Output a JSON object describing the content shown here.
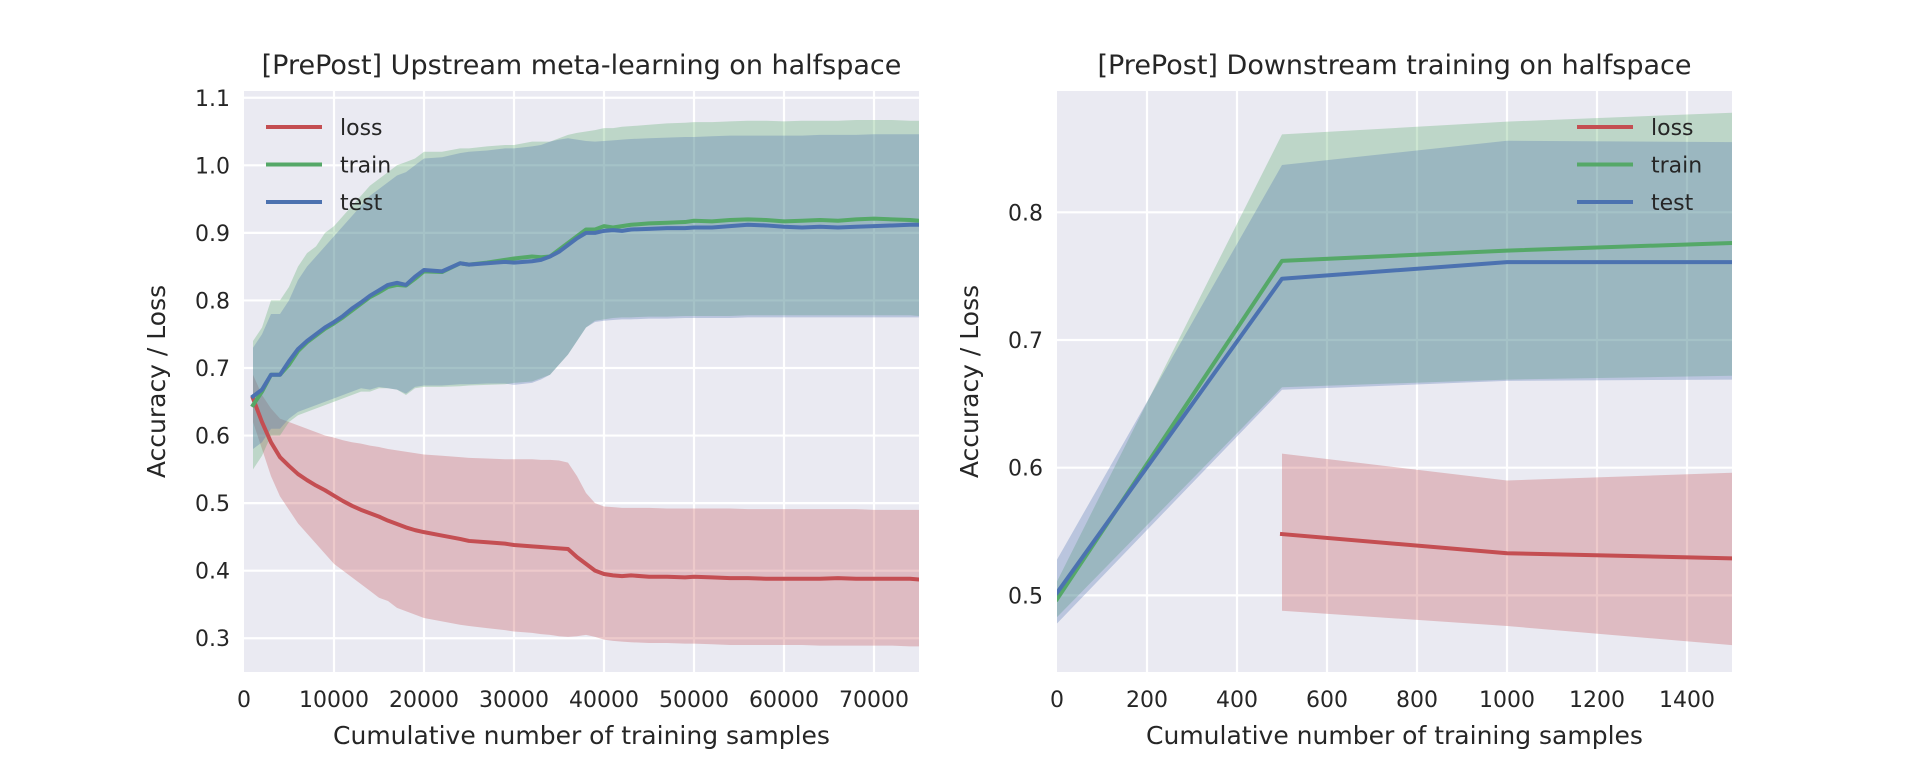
{
  "chart_data": [
    {
      "type": "line",
      "title": "[PrePost] Upstream meta-learning on halfspace",
      "xlabel": "Cumulative number of training samples",
      "ylabel": "Accuracy / Loss",
      "xlim": [
        0,
        75000
      ],
      "ylim": [
        0.25,
        1.11
      ],
      "xticks": [
        0,
        10000,
        20000,
        30000,
        40000,
        50000,
        60000,
        70000
      ],
      "yticks": [
        0.3,
        0.4,
        0.5,
        0.6,
        0.7,
        0.8,
        0.9,
        1.0,
        1.1
      ],
      "grid": true,
      "legend_position": "top-left",
      "x": [
        1000,
        2000,
        3000,
        4000,
        5000,
        6000,
        7000,
        8000,
        9000,
        10000,
        11000,
        12000,
        13000,
        14000,
        15000,
        16000,
        17000,
        18000,
        19000,
        20000,
        22000,
        24000,
        25000,
        27000,
        29000,
        30000,
        32000,
        33000,
        34000,
        35000,
        36000,
        37000,
        38000,
        39000,
        40000,
        41000,
        42000,
        43000,
        45000,
        47000,
        49000,
        50000,
        52000,
        54000,
        56000,
        58000,
        60000,
        62000,
        64000,
        66000,
        68000,
        70000,
        72000,
        74000,
        75000
      ],
      "series": [
        {
          "name": "loss",
          "color": "#c44e52",
          "values": [
            0.655,
            0.62,
            0.59,
            0.568,
            0.555,
            0.543,
            0.534,
            0.526,
            0.519,
            0.511,
            0.503,
            0.496,
            0.49,
            0.485,
            0.48,
            0.474,
            0.469,
            0.464,
            0.46,
            0.457,
            0.452,
            0.447,
            0.444,
            0.442,
            0.44,
            0.438,
            0.436,
            0.435,
            0.434,
            0.433,
            0.432,
            0.42,
            0.41,
            0.4,
            0.395,
            0.393,
            0.392,
            0.393,
            0.391,
            0.391,
            0.39,
            0.391,
            0.39,
            0.389,
            0.389,
            0.388,
            0.388,
            0.388,
            0.388,
            0.389,
            0.388,
            0.388,
            0.388,
            0.388,
            0.387
          ],
          "band_low": [
            0.62,
            0.58,
            0.54,
            0.51,
            0.49,
            0.47,
            0.455,
            0.44,
            0.425,
            0.41,
            0.4,
            0.39,
            0.38,
            0.37,
            0.36,
            0.355,
            0.345,
            0.34,
            0.335,
            0.33,
            0.325,
            0.32,
            0.318,
            0.315,
            0.312,
            0.31,
            0.308,
            0.306,
            0.305,
            0.303,
            0.302,
            0.303,
            0.305,
            0.302,
            0.298,
            0.296,
            0.295,
            0.294,
            0.293,
            0.293,
            0.292,
            0.292,
            0.291,
            0.29,
            0.29,
            0.29,
            0.29,
            0.29,
            0.289,
            0.289,
            0.289,
            0.289,
            0.289,
            0.288,
            0.288
          ],
          "band_high": [
            0.69,
            0.66,
            0.64,
            0.625,
            0.62,
            0.615,
            0.61,
            0.605,
            0.6,
            0.597,
            0.593,
            0.59,
            0.588,
            0.585,
            0.583,
            0.58,
            0.578,
            0.576,
            0.574,
            0.572,
            0.57,
            0.568,
            0.567,
            0.566,
            0.565,
            0.565,
            0.565,
            0.564,
            0.564,
            0.563,
            0.56,
            0.54,
            0.515,
            0.5,
            0.495,
            0.494,
            0.493,
            0.493,
            0.493,
            0.492,
            0.492,
            0.492,
            0.492,
            0.492,
            0.491,
            0.491,
            0.491,
            0.491,
            0.491,
            0.491,
            0.491,
            0.49,
            0.49,
            0.49,
            0.49
          ]
        },
        {
          "name": "train",
          "color": "#55a868",
          "values": [
            0.645,
            0.665,
            0.69,
            0.69,
            0.705,
            0.725,
            0.738,
            0.748,
            0.758,
            0.766,
            0.775,
            0.785,
            0.795,
            0.805,
            0.812,
            0.82,
            0.823,
            0.822,
            0.832,
            0.843,
            0.842,
            0.855,
            0.853,
            0.856,
            0.86,
            0.862,
            0.865,
            0.864,
            0.865,
            0.875,
            0.885,
            0.895,
            0.905,
            0.905,
            0.91,
            0.908,
            0.91,
            0.912,
            0.914,
            0.915,
            0.916,
            0.918,
            0.917,
            0.919,
            0.92,
            0.919,
            0.917,
            0.918,
            0.919,
            0.918,
            0.92,
            0.921,
            0.92,
            0.919,
            0.918
          ],
          "band_low": [
            0.55,
            0.57,
            0.6,
            0.6,
            0.62,
            0.63,
            0.635,
            0.64,
            0.645,
            0.65,
            0.655,
            0.66,
            0.665,
            0.665,
            0.67,
            0.67,
            0.668,
            0.66,
            0.67,
            0.672,
            0.672,
            0.673,
            0.674,
            0.675,
            0.676,
            0.678,
            0.68,
            0.685,
            0.69,
            0.705,
            0.72,
            0.74,
            0.76,
            0.77,
            0.772,
            0.774,
            0.775,
            0.775,
            0.776,
            0.776,
            0.777,
            0.777,
            0.777,
            0.777,
            0.778,
            0.778,
            0.778,
            0.778,
            0.778,
            0.778,
            0.778,
            0.778,
            0.778,
            0.778,
            0.777
          ],
          "band_high": [
            0.74,
            0.76,
            0.8,
            0.8,
            0.82,
            0.85,
            0.87,
            0.88,
            0.9,
            0.91,
            0.925,
            0.94,
            0.955,
            0.97,
            0.98,
            0.99,
            1.0,
            1.005,
            1.01,
            1.02,
            1.02,
            1.025,
            1.025,
            1.028,
            1.03,
            1.03,
            1.035,
            1.035,
            1.035,
            1.04,
            1.045,
            1.048,
            1.05,
            1.052,
            1.055,
            1.055,
            1.057,
            1.058,
            1.06,
            1.062,
            1.063,
            1.064,
            1.064,
            1.065,
            1.066,
            1.066,
            1.065,
            1.066,
            1.066,
            1.066,
            1.067,
            1.067,
            1.067,
            1.066,
            1.066
          ]
        },
        {
          "name": "test",
          "color": "#4c72b0",
          "values": [
            0.658,
            0.668,
            0.69,
            0.69,
            0.71,
            0.728,
            0.74,
            0.75,
            0.76,
            0.768,
            0.777,
            0.788,
            0.797,
            0.807,
            0.815,
            0.823,
            0.826,
            0.823,
            0.835,
            0.845,
            0.843,
            0.855,
            0.853,
            0.855,
            0.857,
            0.856,
            0.858,
            0.86,
            0.865,
            0.872,
            0.882,
            0.892,
            0.9,
            0.9,
            0.903,
            0.904,
            0.903,
            0.905,
            0.906,
            0.907,
            0.907,
            0.908,
            0.908,
            0.91,
            0.912,
            0.911,
            0.909,
            0.908,
            0.909,
            0.908,
            0.909,
            0.91,
            0.911,
            0.912,
            0.912
          ],
          "band_low": [
            0.58,
            0.59,
            0.61,
            0.61,
            0.625,
            0.635,
            0.64,
            0.645,
            0.65,
            0.655,
            0.66,
            0.665,
            0.67,
            0.668,
            0.672,
            0.67,
            0.668,
            0.662,
            0.672,
            0.674,
            0.674,
            0.676,
            0.676,
            0.677,
            0.677,
            0.675,
            0.678,
            0.683,
            0.69,
            0.705,
            0.72,
            0.74,
            0.76,
            0.768,
            0.77,
            0.771,
            0.772,
            0.772,
            0.773,
            0.773,
            0.774,
            0.774,
            0.774,
            0.774,
            0.775,
            0.775,
            0.775,
            0.775,
            0.775,
            0.775,
            0.775,
            0.775,
            0.775,
            0.775,
            0.775
          ],
          "band_high": [
            0.73,
            0.75,
            0.78,
            0.78,
            0.8,
            0.83,
            0.85,
            0.865,
            0.88,
            0.895,
            0.91,
            0.925,
            0.94,
            0.955,
            0.965,
            0.975,
            0.985,
            0.99,
            1.0,
            1.01,
            1.012,
            1.018,
            1.02,
            1.022,
            1.025,
            1.025,
            1.028,
            1.03,
            1.035,
            1.038,
            1.04,
            1.038,
            1.036,
            1.035,
            1.036,
            1.037,
            1.038,
            1.039,
            1.04,
            1.041,
            1.042,
            1.042,
            1.043,
            1.044,
            1.044,
            1.044,
            1.044,
            1.044,
            1.045,
            1.045,
            1.045,
            1.046,
            1.046,
            1.046,
            1.046
          ]
        }
      ]
    },
    {
      "type": "line",
      "title": "[PrePost] Downstream training on halfspace",
      "xlabel": "Cumulative number of training samples",
      "ylabel": "Accuracy / Loss",
      "xlim": [
        0,
        1500
      ],
      "ylim": [
        0.44,
        0.895
      ],
      "xticks": [
        0,
        200,
        400,
        600,
        800,
        1000,
        1200,
        1400
      ],
      "yticks": [
        0.5,
        0.6,
        0.7,
        0.8
      ],
      "grid": true,
      "legend_position": "top-right",
      "series": [
        {
          "name": "loss",
          "color": "#c44e52",
          "x": [
            500,
            1000,
            1500
          ],
          "values": [
            0.548,
            0.533,
            0.529
          ],
          "band_low": [
            0.488,
            0.476,
            0.461
          ],
          "band_high": [
            0.611,
            0.59,
            0.596
          ]
        },
        {
          "name": "train",
          "color": "#55a868",
          "x": [
            0,
            500,
            1000,
            1500
          ],
          "values": [
            0.497,
            0.762,
            0.77,
            0.776
          ],
          "band_low": [
            0.483,
            0.663,
            0.669,
            0.672
          ],
          "band_high": [
            0.511,
            0.861,
            0.871,
            0.878
          ]
        },
        {
          "name": "test",
          "color": "#4c72b0",
          "x": [
            0,
            500,
            1000,
            1500
          ],
          "values": [
            0.502,
            0.748,
            0.761,
            0.761
          ],
          "band_low": [
            0.478,
            0.661,
            0.668,
            0.669
          ],
          "band_high": [
            0.528,
            0.837,
            0.856,
            0.855
          ]
        }
      ]
    }
  ]
}
